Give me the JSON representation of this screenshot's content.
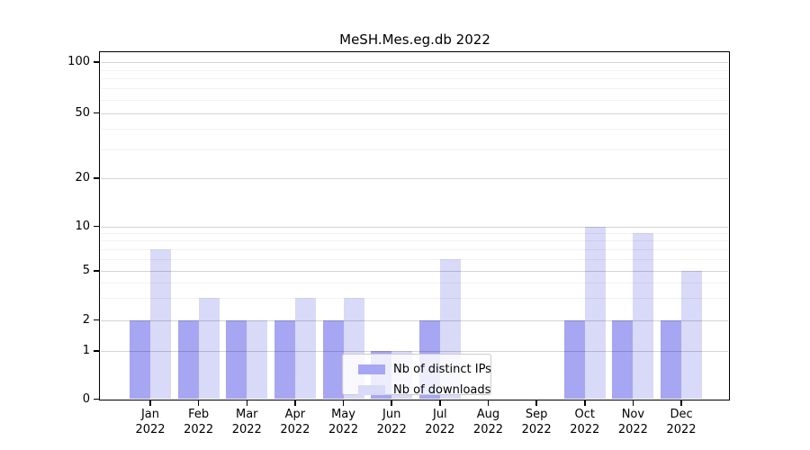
{
  "chart_data": {
    "type": "bar",
    "title": "MeSH.Mes.eg.db 2022",
    "categories": [
      "Jan",
      "Feb",
      "Mar",
      "Apr",
      "May",
      "Jun",
      "Jul",
      "Aug",
      "Sep",
      "Oct",
      "Nov",
      "Dec"
    ],
    "category_year": "2022",
    "series": [
      {
        "name": "Nb of distinct IPs",
        "color": "#a6a6f2",
        "values": [
          2,
          2,
          2,
          2,
          2,
          1,
          2,
          0,
          0,
          2,
          2,
          2
        ]
      },
      {
        "name": "Nb of downloads",
        "color": "#d9d9f8",
        "values": [
          7,
          3,
          2,
          3,
          3,
          1,
          6,
          0,
          0,
          10,
          9,
          5
        ]
      }
    ],
    "xlabel": "",
    "ylabel": "",
    "yscale": "log-like",
    "y_major_ticks": [
      0,
      1,
      2,
      5,
      10,
      20,
      50,
      100
    ],
    "y_tick_labels": [
      "0",
      "1",
      "2",
      "5",
      "10",
      "20",
      "50",
      "100"
    ],
    "y_minor_ticks": [
      3,
      4,
      6,
      7,
      8,
      9,
      30,
      40,
      60,
      70,
      80,
      90
    ],
    "ylim": [
      0,
      105
    ],
    "grid": "horizontal major+minor",
    "legend_position": "lower center"
  }
}
